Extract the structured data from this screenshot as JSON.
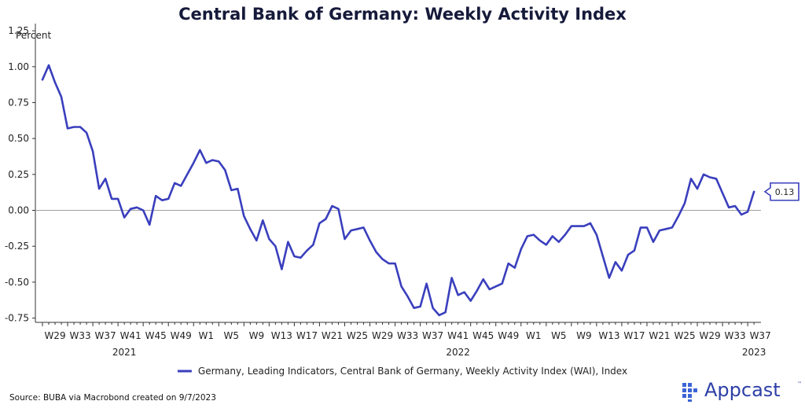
{
  "source": "Source: BUBA via Macrobond created on 9/7/2023",
  "logo": {
    "text": "Appcast",
    "tm": "™"
  },
  "colors": {
    "line": "#3a3fbd",
    "zero": "#a0a0a0",
    "axis": "#333333",
    "logo": "#2d3fa6"
  },
  "chart_data": {
    "type": "line",
    "title": "Central Bank of Germany: Weekly Activity Index",
    "ylabel": "Percent",
    "xlabel": "",
    "ylim": [
      -0.78,
      1.3
    ],
    "yticks": [
      1.25,
      1.0,
      0.75,
      0.5,
      0.25,
      0.0,
      -0.25,
      -0.5,
      -0.75
    ],
    "ytick_labels": [
      "1.25",
      "1.00",
      "0.75",
      "0.50",
      "0.25",
      "0.00",
      "-0.25",
      "-0.50",
      "-0.75"
    ],
    "xtick_labels": [
      "W29",
      "W33",
      "W37",
      "W41",
      "W45",
      "W49",
      "W1",
      "W5",
      "W9",
      "W13",
      "W17",
      "W21",
      "W25",
      "W29",
      "W33",
      "W37",
      "W41",
      "W45",
      "W49",
      "W1",
      "W5",
      "W9",
      "W13",
      "W17",
      "W21",
      "W25",
      "W29",
      "W33",
      "W37"
    ],
    "year_labels": [
      {
        "label": "2021",
        "x_index": 13
      },
      {
        "label": "2022",
        "x_index": 66
      },
      {
        "label": "2023",
        "x_index": 113
      }
    ],
    "grid": false,
    "legend": "bottom",
    "end_label": "0.13",
    "series": [
      {
        "name": "Germany, Leading Indicators, Central Bank of Germany, Weekly Activity Index (WAI), Index",
        "values": [
          0.91,
          1.01,
          0.89,
          0.79,
          0.57,
          0.58,
          0.58,
          0.54,
          0.41,
          0.15,
          0.22,
          0.08,
          0.08,
          -0.05,
          0.01,
          0.02,
          0.0,
          -0.1,
          0.1,
          0.07,
          0.08,
          0.19,
          0.17,
          0.25,
          0.33,
          0.42,
          0.33,
          0.35,
          0.34,
          0.28,
          0.14,
          0.15,
          -0.04,
          -0.13,
          -0.21,
          -0.07,
          -0.2,
          -0.25,
          -0.41,
          -0.22,
          -0.32,
          -0.33,
          -0.28,
          -0.24,
          -0.09,
          -0.06,
          0.03,
          0.01,
          -0.2,
          -0.14,
          -0.13,
          -0.12,
          -0.21,
          -0.29,
          -0.34,
          -0.37,
          -0.37,
          -0.53,
          -0.6,
          -0.68,
          -0.67,
          -0.51,
          -0.68,
          -0.73,
          -0.71,
          -0.47,
          -0.59,
          -0.57,
          -0.63,
          -0.56,
          -0.48,
          -0.55,
          -0.53,
          -0.51,
          -0.37,
          -0.4,
          -0.27,
          -0.18,
          -0.17,
          -0.21,
          -0.24,
          -0.18,
          -0.22,
          -0.17,
          -0.11,
          -0.11,
          -0.11,
          -0.09,
          -0.17,
          -0.32,
          -0.47,
          -0.36,
          -0.42,
          -0.31,
          -0.28,
          -0.12,
          -0.12,
          -0.22,
          -0.14,
          -0.13,
          -0.12,
          -0.04,
          0.05,
          0.22,
          0.15,
          0.25,
          0.23,
          0.22,
          0.12,
          0.02,
          0.03,
          -0.03,
          -0.01,
          0.13
        ]
      }
    ]
  }
}
